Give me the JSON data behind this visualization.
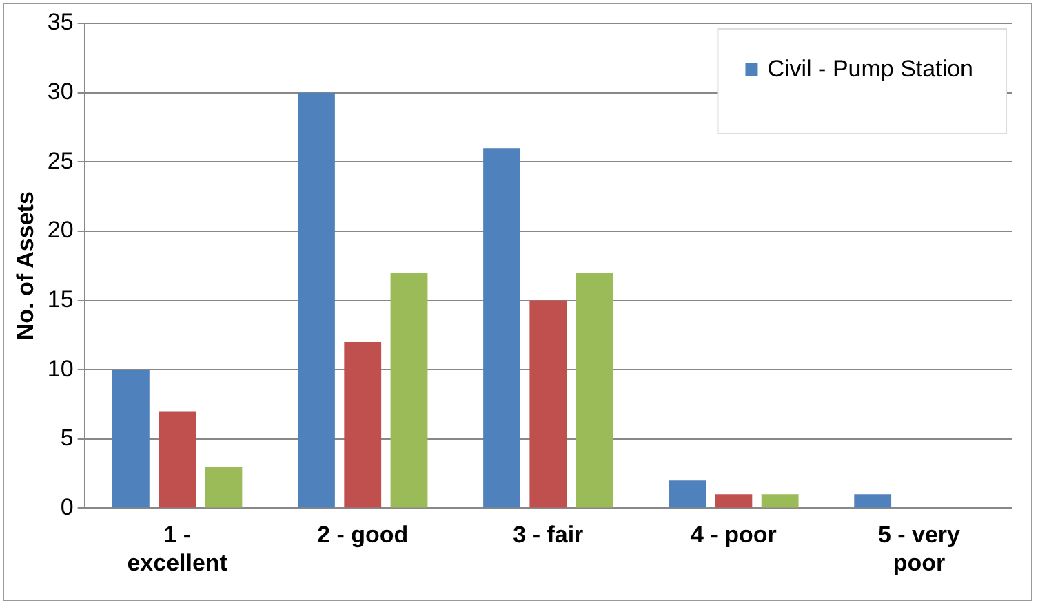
{
  "chart_data": {
    "type": "bar",
    "ylabel": "No. of Assets",
    "categories": [
      "1 - excellent",
      "2 - good",
      "3 - fair",
      "4 - poor",
      "5 - very poor"
    ],
    "series": [
      {
        "name": "Civil - Pump Station",
        "color": "#4f81bd",
        "values": [
          10,
          30,
          26,
          2,
          1
        ]
      },
      {
        "color": "#c0504d",
        "values": [
          7,
          12,
          15,
          1,
          0
        ]
      },
      {
        "color": "#9bbb59",
        "values": [
          3,
          17,
          17,
          1,
          0
        ]
      }
    ],
    "ylim": [
      0,
      35
    ],
    "yticks": [
      0,
      5,
      10,
      15,
      20,
      25,
      30,
      35
    ],
    "grid": "y",
    "legend": "top right"
  }
}
